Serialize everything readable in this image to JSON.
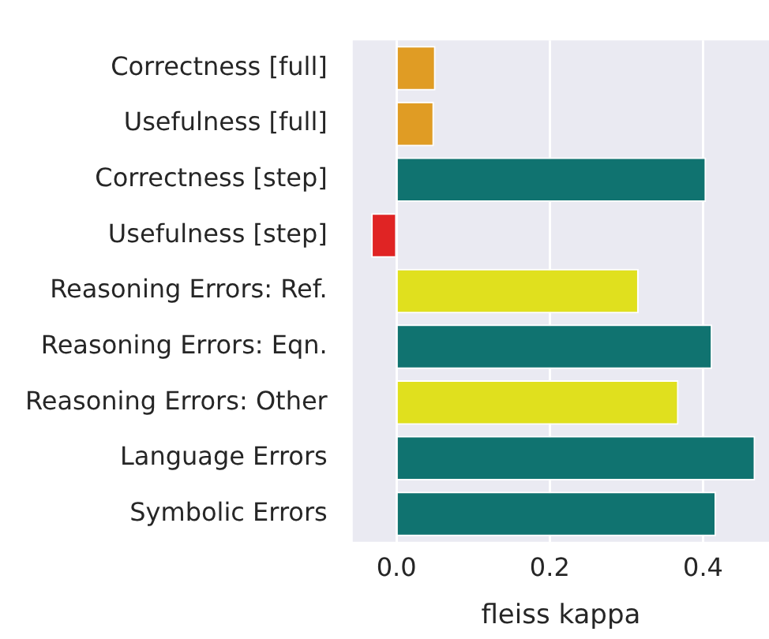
{
  "chart_data": {
    "type": "bar",
    "orientation": "horizontal",
    "xlabel": "fleiss kappa",
    "categories": [
      "Correctness [full]",
      "Usefulness [full]",
      "Correctness [step]",
      "Usefulness [step]",
      "Reasoning Errors: Ref.",
      "Reasoning Errors: Eqn.",
      "Reasoning Errors: Other",
      "Language Errors",
      "Symbolic Errors"
    ],
    "values": [
      0.051,
      0.049,
      0.404,
      -0.033,
      0.316,
      0.412,
      0.368,
      0.468,
      0.417
    ],
    "colors": [
      "#e09c24",
      "#e09c24",
      "#107370",
      "#e02424",
      "#e0e01e",
      "#107370",
      "#e0e01e",
      "#107370",
      "#107370"
    ],
    "xlim": [
      -0.057,
      0.486
    ],
    "xticks": [
      {
        "value": 0,
        "label": "0.0"
      },
      {
        "value": 0.2,
        "label": "0.2"
      },
      {
        "value": 0.4,
        "label": "0.4"
      }
    ],
    "grid": "x",
    "legend": false
  }
}
